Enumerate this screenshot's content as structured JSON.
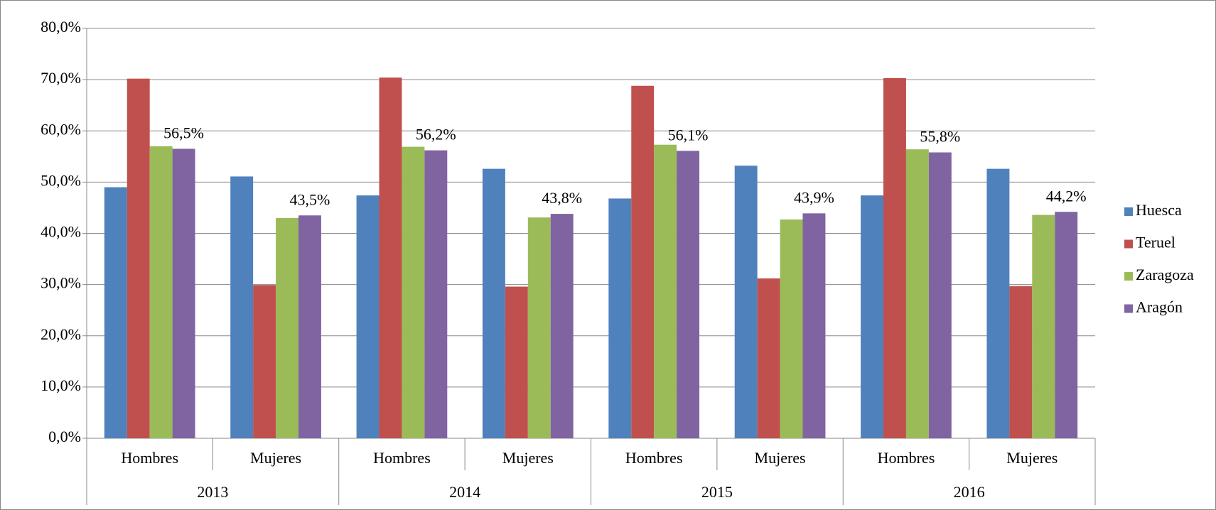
{
  "chart_data": {
    "type": "bar",
    "categories": [
      "Hombres",
      "Mujeres",
      "Hombres",
      "Mujeres",
      "Hombres",
      "Mujeres",
      "Hombres",
      "Mujeres"
    ],
    "category_groups": [
      "2013",
      "2014",
      "2015",
      "2016"
    ],
    "series": [
      {
        "name": "Huesca",
        "color": "#4f81bd",
        "values": [
          49.0,
          51.1,
          47.4,
          52.6,
          46.8,
          53.2,
          47.4,
          52.6
        ]
      },
      {
        "name": "Teruel",
        "color": "#c0504d",
        "values": [
          70.2,
          29.9,
          70.4,
          29.6,
          68.8,
          31.2,
          70.3,
          29.7
        ]
      },
      {
        "name": "Zaragoza",
        "color": "#9bbb59",
        "values": [
          57.0,
          43.0,
          56.9,
          43.1,
          57.3,
          42.7,
          56.4,
          43.6
        ]
      },
      {
        "name": "Aragón",
        "color": "#8064a2",
        "values": [
          56.5,
          43.5,
          56.2,
          43.8,
          56.1,
          43.9,
          55.8,
          44.2
        ],
        "value_labels": [
          "56,5%",
          "43,5%",
          "56,2%",
          "43,8%",
          "56,1%",
          "43,9%",
          "55,8%",
          "44,2%"
        ]
      }
    ],
    "ylim": [
      0,
      80
    ],
    "yticks": [
      {
        "value": 0,
        "label": "0,0%"
      },
      {
        "value": 10,
        "label": "10,0%"
      },
      {
        "value": 20,
        "label": "20,0%"
      },
      {
        "value": 30,
        "label": "30,0%"
      },
      {
        "value": 40,
        "label": "40,0%"
      },
      {
        "value": 50,
        "label": "50,0%"
      },
      {
        "value": 60,
        "label": "60,0%"
      },
      {
        "value": 70,
        "label": "70,0%"
      },
      {
        "value": 80,
        "label": "80,0%"
      }
    ],
    "grid": true,
    "legend": "right"
  }
}
